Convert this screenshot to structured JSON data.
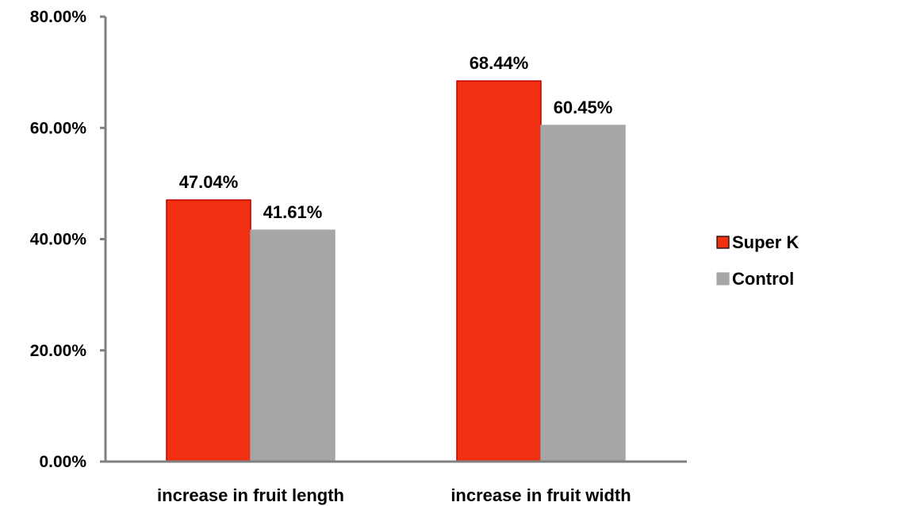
{
  "chart_data": {
    "type": "bar",
    "categories": [
      "increase in fruit length",
      "increase in fruit width"
    ],
    "series": [
      {
        "name": "Super K",
        "values": [
          0.4704,
          0.6844
        ],
        "labels": [
          "47.04%",
          "68.44%"
        ],
        "color": "#f03010",
        "edge_color": "#c00000"
      },
      {
        "name": "Control",
        "values": [
          0.4161,
          0.6045
        ],
        "labels": [
          "41.61%",
          "60.45%"
        ],
        "color": "#a6a6a6",
        "edge_color": "#a6a6a6"
      }
    ],
    "ylim": [
      0,
      0.8
    ],
    "yticks": [
      0,
      0.2,
      0.4,
      0.6,
      0.8
    ],
    "ytick_labels": [
      "0.00%",
      "20.00%",
      "40.00%",
      "60.00%",
      "80.00%"
    ],
    "title": "",
    "xlabel": "",
    "ylabel": "",
    "legend": "right",
    "grid": false,
    "axis_color": "#808080"
  }
}
